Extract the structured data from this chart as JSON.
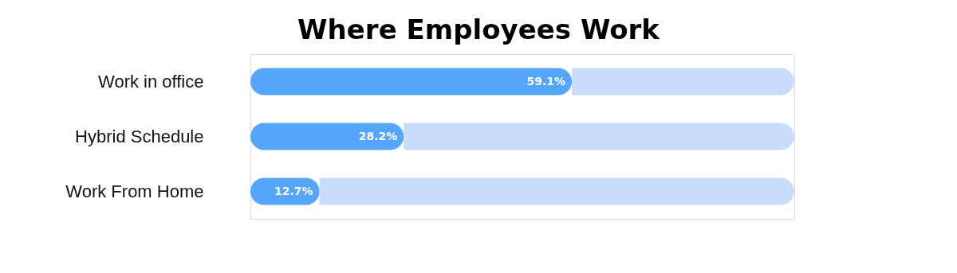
{
  "chart_data": {
    "type": "bar",
    "orientation": "horizontal",
    "title": "Where Employees Work",
    "categories": [
      "Work in office",
      "Hybrid Schedule",
      "Work From Home"
    ],
    "stacked": true,
    "legend": false,
    "series": [
      {
        "color": "#55a6fb",
        "values": [
          59.1,
          28.2,
          12.7
        ],
        "value_labels": [
          "59.1%",
          "28.2%",
          "12.7%"
        ]
      },
      {
        "color": "#cadcfd",
        "values": [
          40.9,
          71.8,
          87.3
        ]
      }
    ],
    "xlim": [
      0,
      100
    ],
    "tick_labels": "y",
    "grid": false
  }
}
